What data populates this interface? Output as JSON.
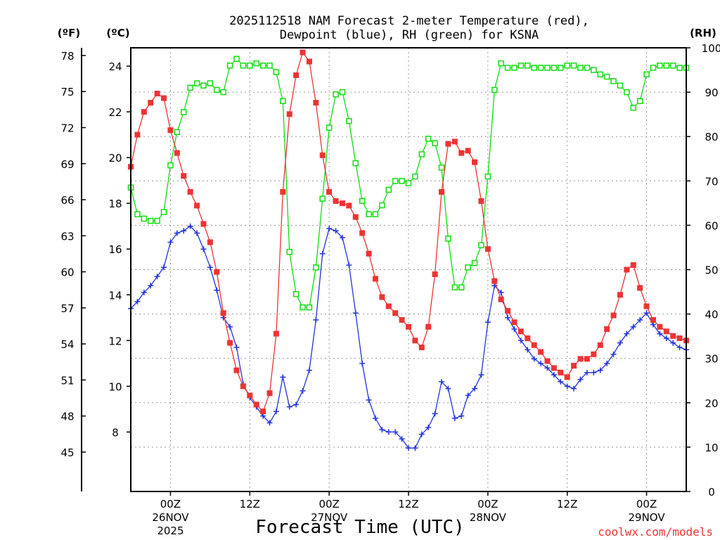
{
  "chart_data": {
    "type": "line",
    "title": "2025112518 NAM Forecast 2-meter Temperature (red),",
    "subtitle": "Dewpoint (blue), RH (green) for KSNA",
    "xlabel": "Forecast Time (UTC)",
    "credit": "coolwx.com/models",
    "units": {
      "fahrenheit": "(ºF)",
      "celsius": "(ºC)",
      "rh": "(RH)"
    },
    "colors": {
      "temperature": "#ee3333",
      "dewpoint": "#2233dd",
      "rh": "#11dd11"
    },
    "x_unit": "hours since 2025-11-25 18Z",
    "xlim": [
      0,
      84
    ],
    "ylim_celsius": [
      5.4,
      24.8
    ],
    "ylim_fahrenheit": [
      41.72,
      78.64
    ],
    "ylim_rh": [
      0,
      100
    ],
    "x_ticks": [
      {
        "x": 6,
        "line1": "00Z",
        "line2": "26NOV",
        "line3": "2025"
      },
      {
        "x": 18,
        "line1": "12Z",
        "line2": "",
        "line3": ""
      },
      {
        "x": 30,
        "line1": "00Z",
        "line2": "27NOV",
        "line3": ""
      },
      {
        "x": 42,
        "line1": "12Z",
        "line2": "",
        "line3": ""
      },
      {
        "x": 54,
        "line1": "00Z",
        "line2": "28NOV",
        "line3": ""
      },
      {
        "x": 66,
        "line1": "12Z",
        "line2": "",
        "line3": ""
      },
      {
        "x": 78,
        "line1": "00Z",
        "line2": "29NOV",
        "line3": ""
      }
    ],
    "y_ticks_celsius": [
      8,
      10,
      12,
      14,
      16,
      18,
      20,
      22,
      24
    ],
    "y_ticks_fahrenheit": [
      45,
      48,
      51,
      54,
      57,
      60,
      63,
      66,
      69,
      72,
      75,
      78
    ],
    "y_ticks_rh": [
      0,
      10,
      20,
      30,
      40,
      50,
      60,
      70,
      80,
      90,
      100
    ],
    "series": [
      {
        "name": "Temperature",
        "units": "°C",
        "values": [
          [
            0,
            19.6
          ],
          [
            1,
            21.0
          ],
          [
            2,
            22.0
          ],
          [
            3,
            22.4
          ],
          [
            4,
            22.8
          ],
          [
            5,
            22.6
          ],
          [
            6,
            21.2
          ],
          [
            7,
            20.2
          ],
          [
            8,
            19.2
          ],
          [
            9,
            18.5
          ],
          [
            10,
            17.9
          ],
          [
            11,
            17.1
          ],
          [
            12,
            16.3
          ],
          [
            13,
            15.0
          ],
          [
            14,
            13.2
          ],
          [
            15,
            11.9
          ],
          [
            16,
            10.7
          ],
          [
            17,
            10.0
          ],
          [
            18,
            9.6
          ],
          [
            19,
            9.2
          ],
          [
            20,
            8.9
          ],
          [
            21,
            9.7
          ],
          [
            22,
            12.3
          ],
          [
            23,
            18.5
          ],
          [
            24,
            21.9
          ],
          [
            25,
            23.6
          ],
          [
            26,
            24.6
          ],
          [
            27,
            24.2
          ],
          [
            28,
            22.4
          ],
          [
            29,
            20.1
          ],
          [
            30,
            18.5
          ],
          [
            31,
            18.1
          ],
          [
            32,
            18.0
          ],
          [
            33,
            17.9
          ],
          [
            34,
            17.4
          ],
          [
            35,
            16.7
          ],
          [
            36,
            15.8
          ],
          [
            37,
            14.7
          ],
          [
            38,
            13.9
          ],
          [
            39,
            13.5
          ],
          [
            40,
            13.2
          ],
          [
            41,
            12.9
          ],
          [
            42,
            12.6
          ],
          [
            43,
            12.0
          ],
          [
            44,
            11.7
          ],
          [
            45,
            12.6
          ],
          [
            46,
            14.9
          ],
          [
            47,
            18.5
          ],
          [
            48,
            20.6
          ],
          [
            49,
            20.7
          ],
          [
            50,
            20.2
          ],
          [
            51,
            20.3
          ],
          [
            52,
            19.8
          ],
          [
            53,
            18.1
          ],
          [
            54,
            16.0
          ],
          [
            55,
            14.6
          ],
          [
            56,
            13.8
          ],
          [
            57,
            13.3
          ],
          [
            58,
            12.8
          ],
          [
            59,
            12.4
          ],
          [
            60,
            12.1
          ],
          [
            61,
            11.8
          ],
          [
            62,
            11.5
          ],
          [
            63,
            11.1
          ],
          [
            64,
            10.8
          ],
          [
            65,
            10.6
          ],
          [
            66,
            10.4
          ],
          [
            67,
            10.9
          ],
          [
            68,
            11.2
          ],
          [
            69,
            11.2
          ],
          [
            70,
            11.4
          ],
          [
            71,
            11.8
          ],
          [
            72,
            12.5
          ],
          [
            73,
            13.1
          ],
          [
            74,
            14.0
          ],
          [
            75,
            15.1
          ],
          [
            76,
            15.3
          ],
          [
            77,
            14.3
          ],
          [
            78,
            13.5
          ],
          [
            79,
            12.9
          ],
          [
            80,
            12.6
          ],
          [
            81,
            12.4
          ],
          [
            82,
            12.2
          ],
          [
            83,
            12.1
          ],
          [
            84,
            12.0
          ]
        ]
      },
      {
        "name": "Dewpoint",
        "units": "°C",
        "values": [
          [
            0,
            13.4
          ],
          [
            1,
            13.7
          ],
          [
            2,
            14.1
          ],
          [
            3,
            14.4
          ],
          [
            4,
            14.8
          ],
          [
            5,
            15.2
          ],
          [
            6,
            16.3
          ],
          [
            7,
            16.7
          ],
          [
            8,
            16.8
          ],
          [
            9,
            17.0
          ],
          [
            10,
            16.7
          ],
          [
            11,
            16.0
          ],
          [
            12,
            15.2
          ],
          [
            13,
            14.2
          ],
          [
            14,
            13.0
          ],
          [
            15,
            12.6
          ],
          [
            16,
            11.7
          ],
          [
            17,
            10.1
          ],
          [
            18,
            9.5
          ],
          [
            19,
            9.1
          ],
          [
            20,
            8.7
          ],
          [
            21,
            8.4
          ],
          [
            22,
            8.9
          ],
          [
            23,
            10.4
          ],
          [
            24,
            9.1
          ],
          [
            25,
            9.2
          ],
          [
            26,
            9.8
          ],
          [
            27,
            10.7
          ],
          [
            28,
            12.9
          ],
          [
            29,
            15.8
          ],
          [
            30,
            16.9
          ],
          [
            31,
            16.8
          ],
          [
            32,
            16.5
          ],
          [
            33,
            15.3
          ],
          [
            34,
            13.2
          ],
          [
            35,
            11.0
          ],
          [
            36,
            9.4
          ],
          [
            37,
            8.6
          ],
          [
            38,
            8.1
          ],
          [
            39,
            8.0
          ],
          [
            40,
            8.0
          ],
          [
            41,
            7.7
          ],
          [
            42,
            7.3
          ],
          [
            43,
            7.3
          ],
          [
            44,
            7.9
          ],
          [
            45,
            8.2
          ],
          [
            46,
            8.8
          ],
          [
            47,
            10.2
          ],
          [
            48,
            9.9
          ],
          [
            49,
            8.6
          ],
          [
            50,
            8.7
          ],
          [
            51,
            9.6
          ],
          [
            52,
            9.9
          ],
          [
            53,
            10.5
          ],
          [
            54,
            12.8
          ],
          [
            55,
            14.4
          ],
          [
            56,
            14.1
          ],
          [
            57,
            13.0
          ],
          [
            58,
            12.5
          ],
          [
            59,
            12.0
          ],
          [
            60,
            11.6
          ],
          [
            61,
            11.2
          ],
          [
            62,
            11.0
          ],
          [
            63,
            10.8
          ],
          [
            64,
            10.5
          ],
          [
            65,
            10.2
          ],
          [
            66,
            10.0
          ],
          [
            67,
            9.9
          ],
          [
            68,
            10.3
          ],
          [
            69,
            10.6
          ],
          [
            70,
            10.6
          ],
          [
            71,
            10.7
          ],
          [
            72,
            11.0
          ],
          [
            73,
            11.4
          ],
          [
            74,
            11.9
          ],
          [
            75,
            12.3
          ],
          [
            76,
            12.6
          ],
          [
            77,
            12.9
          ],
          [
            78,
            13.2
          ],
          [
            79,
            12.7
          ],
          [
            80,
            12.3
          ],
          [
            81,
            12.1
          ],
          [
            82,
            11.9
          ],
          [
            83,
            11.7
          ],
          [
            84,
            11.6
          ]
        ]
      },
      {
        "name": "RH",
        "units": "%",
        "values": [
          [
            0,
            68.5
          ],
          [
            1,
            62.5
          ],
          [
            2,
            61.5
          ],
          [
            3,
            61.0
          ],
          [
            4,
            61.0
          ],
          [
            5,
            63.0
          ],
          [
            6,
            73.5
          ],
          [
            7,
            81.0
          ],
          [
            8,
            85.5
          ],
          [
            9,
            91.0
          ],
          [
            10,
            92.0
          ],
          [
            11,
            91.5
          ],
          [
            12,
            92.0
          ],
          [
            13,
            90.5
          ],
          [
            14,
            90.0
          ],
          [
            15,
            96.0
          ],
          [
            16,
            97.5
          ],
          [
            17,
            96.0
          ],
          [
            18,
            96.0
          ],
          [
            19,
            96.5
          ],
          [
            20,
            96.0
          ],
          [
            21,
            96.0
          ],
          [
            22,
            94.5
          ],
          [
            23,
            88.0
          ],
          [
            24,
            54.0
          ],
          [
            25,
            44.5
          ],
          [
            26,
            41.5
          ],
          [
            27,
            41.5
          ],
          [
            28,
            50.5
          ],
          [
            29,
            66.0
          ],
          [
            30,
            82.0
          ],
          [
            31,
            89.5
          ],
          [
            32,
            90.0
          ],
          [
            33,
            83.5
          ],
          [
            34,
            74.0
          ],
          [
            35,
            65.5
          ],
          [
            36,
            62.5
          ],
          [
            37,
            62.5
          ],
          [
            38,
            64.5
          ],
          [
            39,
            68.0
          ],
          [
            40,
            70.0
          ],
          [
            41,
            70.0
          ],
          [
            42,
            69.5
          ],
          [
            43,
            71.0
          ],
          [
            44,
            76.0
          ],
          [
            45,
            79.5
          ],
          [
            46,
            78.5
          ],
          [
            47,
            73.0
          ],
          [
            48,
            57.0
          ],
          [
            49,
            46.0
          ],
          [
            50,
            46.0
          ],
          [
            51,
            50.5
          ],
          [
            52,
            51.5
          ],
          [
            53,
            55.5
          ],
          [
            54,
            71.0
          ],
          [
            55,
            90.5
          ],
          [
            56,
            96.5
          ],
          [
            57,
            95.5
          ],
          [
            58,
            95.5
          ],
          [
            59,
            96.0
          ],
          [
            60,
            96.0
          ],
          [
            61,
            95.5
          ],
          [
            62,
            95.5
          ],
          [
            63,
            95.5
          ],
          [
            64,
            95.5
          ],
          [
            65,
            95.5
          ],
          [
            66,
            96.0
          ],
          [
            67,
            96.0
          ],
          [
            68,
            95.5
          ],
          [
            69,
            95.5
          ],
          [
            70,
            95.0
          ],
          [
            71,
            94.0
          ],
          [
            72,
            93.5
          ],
          [
            73,
            92.5
          ],
          [
            74,
            91.5
          ],
          [
            75,
            90.0
          ],
          [
            76,
            86.5
          ],
          [
            77,
            88.0
          ],
          [
            78,
            94.0
          ],
          [
            79,
            95.5
          ],
          [
            80,
            96.0
          ],
          [
            81,
            96.0
          ],
          [
            82,
            96.0
          ],
          [
            83,
            95.5
          ],
          [
            84,
            95.5
          ]
        ]
      }
    ]
  }
}
